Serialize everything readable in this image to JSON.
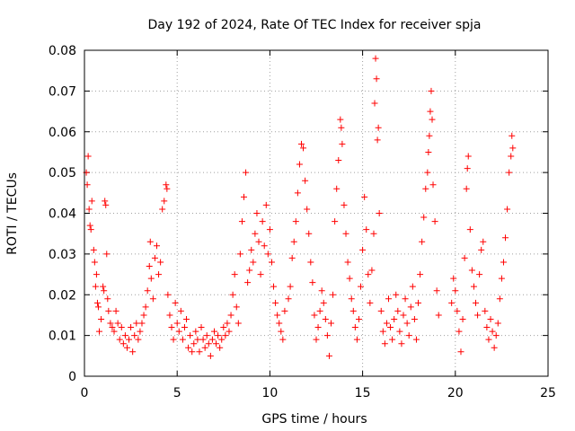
{
  "chart_data": {
    "type": "scatter",
    "title": "Day 192 of 2024, Rate Of TEC Index for receiver spja",
    "xlabel": "GPS time / hours",
    "ylabel": "ROTI / TECUs",
    "xlim": [
      0,
      25
    ],
    "ylim": [
      0,
      0.08
    ],
    "xticks": [
      0,
      5,
      10,
      15,
      20,
      25
    ],
    "yticks": [
      0,
      0.01,
      0.02,
      0.03,
      0.04,
      0.05,
      0.06,
      0.07,
      0.08
    ],
    "xtick_labels": [
      "0",
      "5",
      "10",
      "15",
      "20",
      "25"
    ],
    "ytick_labels": [
      "0",
      "0.01",
      "0.02",
      "0.03",
      "0.04",
      "0.05",
      "0.06",
      "0.07",
      "0.08"
    ],
    "grid": true,
    "marker": "+",
    "color": "#ff0000",
    "series": [
      {
        "name": "ROTI",
        "points": [
          [
            0.1,
            0.05
          ],
          [
            0.15,
            0.047
          ],
          [
            0.2,
            0.054
          ],
          [
            0.25,
            0.041
          ],
          [
            0.3,
            0.037
          ],
          [
            0.35,
            0.036
          ],
          [
            0.4,
            0.043
          ],
          [
            0.5,
            0.031
          ],
          [
            0.55,
            0.028
          ],
          [
            0.6,
            0.022
          ],
          [
            0.65,
            0.025
          ],
          [
            0.7,
            0.018
          ],
          [
            0.75,
            0.017
          ],
          [
            0.8,
            0.011
          ],
          [
            0.9,
            0.014
          ],
          [
            1.0,
            0.022
          ],
          [
            1.05,
            0.021
          ],
          [
            1.1,
            0.043
          ],
          [
            1.15,
            0.042
          ],
          [
            1.2,
            0.03
          ],
          [
            1.25,
            0.019
          ],
          [
            1.3,
            0.016
          ],
          [
            1.4,
            0.013
          ],
          [
            1.5,
            0.012
          ],
          [
            1.6,
            0.011
          ],
          [
            1.7,
            0.016
          ],
          [
            1.8,
            0.013
          ],
          [
            1.9,
            0.009
          ],
          [
            2.0,
            0.012
          ],
          [
            2.1,
            0.008
          ],
          [
            2.2,
            0.01
          ],
          [
            2.3,
            0.007
          ],
          [
            2.4,
            0.009
          ],
          [
            2.5,
            0.012
          ],
          [
            2.6,
            0.006
          ],
          [
            2.7,
            0.01
          ],
          [
            2.8,
            0.013
          ],
          [
            2.9,
            0.009
          ],
          [
            3.0,
            0.011
          ],
          [
            3.1,
            0.013
          ],
          [
            3.2,
            0.015
          ],
          [
            3.3,
            0.017
          ],
          [
            3.4,
            0.021
          ],
          [
            3.5,
            0.027
          ],
          [
            3.55,
            0.033
          ],
          [
            3.6,
            0.024
          ],
          [
            3.7,
            0.019
          ],
          [
            3.8,
            0.029
          ],
          [
            3.9,
            0.032
          ],
          [
            4.0,
            0.025
          ],
          [
            4.1,
            0.028
          ],
          [
            4.2,
            0.041
          ],
          [
            4.3,
            0.043
          ],
          [
            4.4,
            0.047
          ],
          [
            4.45,
            0.046
          ],
          [
            4.5,
            0.02
          ],
          [
            4.6,
            0.015
          ],
          [
            4.7,
            0.012
          ],
          [
            4.8,
            0.009
          ],
          [
            4.9,
            0.018
          ],
          [
            5.0,
            0.013
          ],
          [
            5.1,
            0.011
          ],
          [
            5.2,
            0.016
          ],
          [
            5.3,
            0.009
          ],
          [
            5.4,
            0.012
          ],
          [
            5.5,
            0.014
          ],
          [
            5.6,
            0.007
          ],
          [
            5.7,
            0.01
          ],
          [
            5.8,
            0.006
          ],
          [
            5.9,
            0.008
          ],
          [
            6.0,
            0.011
          ],
          [
            6.1,
            0.009
          ],
          [
            6.2,
            0.006
          ],
          [
            6.3,
            0.012
          ],
          [
            6.4,
            0.009
          ],
          [
            6.5,
            0.007
          ],
          [
            6.6,
            0.01
          ],
          [
            6.7,
            0.008
          ],
          [
            6.8,
            0.005
          ],
          [
            6.9,
            0.009
          ],
          [
            7.0,
            0.011
          ],
          [
            7.1,
            0.008
          ],
          [
            7.2,
            0.01
          ],
          [
            7.3,
            0.007
          ],
          [
            7.4,
            0.009
          ],
          [
            7.5,
            0.012
          ],
          [
            7.6,
            0.01
          ],
          [
            7.7,
            0.013
          ],
          [
            7.8,
            0.011
          ],
          [
            7.9,
            0.015
          ],
          [
            8.0,
            0.02
          ],
          [
            8.1,
            0.025
          ],
          [
            8.2,
            0.017
          ],
          [
            8.3,
            0.013
          ],
          [
            8.4,
            0.03
          ],
          [
            8.5,
            0.038
          ],
          [
            8.6,
            0.044
          ],
          [
            8.7,
            0.05
          ],
          [
            8.8,
            0.023
          ],
          [
            8.9,
            0.026
          ],
          [
            9.0,
            0.031
          ],
          [
            9.1,
            0.028
          ],
          [
            9.2,
            0.035
          ],
          [
            9.3,
            0.04
          ],
          [
            9.4,
            0.033
          ],
          [
            9.5,
            0.025
          ],
          [
            9.6,
            0.038
          ],
          [
            9.7,
            0.032
          ],
          [
            9.8,
            0.042
          ],
          [
            9.9,
            0.03
          ],
          [
            10.0,
            0.036
          ],
          [
            10.1,
            0.028
          ],
          [
            10.2,
            0.022
          ],
          [
            10.3,
            0.018
          ],
          [
            10.4,
            0.015
          ],
          [
            10.5,
            0.013
          ],
          [
            10.6,
            0.011
          ],
          [
            10.7,
            0.009
          ],
          [
            10.8,
            0.016
          ],
          [
            11.0,
            0.019
          ],
          [
            11.1,
            0.022
          ],
          [
            11.2,
            0.029
          ],
          [
            11.3,
            0.033
          ],
          [
            11.4,
            0.038
          ],
          [
            11.5,
            0.045
          ],
          [
            11.6,
            0.052
          ],
          [
            11.7,
            0.057
          ],
          [
            11.8,
            0.056
          ],
          [
            11.9,
            0.048
          ],
          [
            12.0,
            0.041
          ],
          [
            12.1,
            0.035
          ],
          [
            12.2,
            0.028
          ],
          [
            12.3,
            0.023
          ],
          [
            12.4,
            0.015
          ],
          [
            12.5,
            0.009
          ],
          [
            12.6,
            0.012
          ],
          [
            12.7,
            0.016
          ],
          [
            12.8,
            0.021
          ],
          [
            12.9,
            0.018
          ],
          [
            13.0,
            0.014
          ],
          [
            13.1,
            0.01
          ],
          [
            13.2,
            0.005
          ],
          [
            13.3,
            0.013
          ],
          [
            13.4,
            0.02
          ],
          [
            13.5,
            0.038
          ],
          [
            13.6,
            0.046
          ],
          [
            13.7,
            0.053
          ],
          [
            13.8,
            0.063
          ],
          [
            13.85,
            0.061
          ],
          [
            13.9,
            0.057
          ],
          [
            14.0,
            0.042
          ],
          [
            14.1,
            0.035
          ],
          [
            14.2,
            0.028
          ],
          [
            14.3,
            0.024
          ],
          [
            14.4,
            0.019
          ],
          [
            14.5,
            0.016
          ],
          [
            14.6,
            0.012
          ],
          [
            14.7,
            0.009
          ],
          [
            14.8,
            0.014
          ],
          [
            14.9,
            0.022
          ],
          [
            15.0,
            0.031
          ],
          [
            15.1,
            0.044
          ],
          [
            15.2,
            0.036
          ],
          [
            15.3,
            0.025
          ],
          [
            15.4,
            0.018
          ],
          [
            15.5,
            0.026
          ],
          [
            15.6,
            0.035
          ],
          [
            15.65,
            0.067
          ],
          [
            15.7,
            0.078
          ],
          [
            15.75,
            0.073
          ],
          [
            15.8,
            0.058
          ],
          [
            15.85,
            0.061
          ],
          [
            15.9,
            0.04
          ],
          [
            16.0,
            0.016
          ],
          [
            16.1,
            0.011
          ],
          [
            16.2,
            0.008
          ],
          [
            16.3,
            0.013
          ],
          [
            16.4,
            0.019
          ],
          [
            16.5,
            0.012
          ],
          [
            16.6,
            0.009
          ],
          [
            16.7,
            0.014
          ],
          [
            16.8,
            0.02
          ],
          [
            16.9,
            0.016
          ],
          [
            17.0,
            0.011
          ],
          [
            17.1,
            0.008
          ],
          [
            17.2,
            0.015
          ],
          [
            17.3,
            0.019
          ],
          [
            17.4,
            0.013
          ],
          [
            17.5,
            0.01
          ],
          [
            17.6,
            0.017
          ],
          [
            17.7,
            0.022
          ],
          [
            17.8,
            0.014
          ],
          [
            17.9,
            0.009
          ],
          [
            18.0,
            0.018
          ],
          [
            18.1,
            0.025
          ],
          [
            18.2,
            0.033
          ],
          [
            18.3,
            0.039
          ],
          [
            18.4,
            0.046
          ],
          [
            18.5,
            0.05
          ],
          [
            18.55,
            0.055
          ],
          [
            18.6,
            0.059
          ],
          [
            18.65,
            0.065
          ],
          [
            18.7,
            0.07
          ],
          [
            18.75,
            0.063
          ],
          [
            18.8,
            0.047
          ],
          [
            18.9,
            0.038
          ],
          [
            19.0,
            0.021
          ],
          [
            19.1,
            0.015
          ],
          [
            19.8,
            0.018
          ],
          [
            19.9,
            0.024
          ],
          [
            20.0,
            0.021
          ],
          [
            20.1,
            0.016
          ],
          [
            20.2,
            0.011
          ],
          [
            20.3,
            0.006
          ],
          [
            20.4,
            0.014
          ],
          [
            20.5,
            0.029
          ],
          [
            20.6,
            0.046
          ],
          [
            20.65,
            0.051
          ],
          [
            20.7,
            0.054
          ],
          [
            20.8,
            0.036
          ],
          [
            20.9,
            0.026
          ],
          [
            21.0,
            0.022
          ],
          [
            21.1,
            0.018
          ],
          [
            21.2,
            0.015
          ],
          [
            21.3,
            0.025
          ],
          [
            21.4,
            0.031
          ],
          [
            21.5,
            0.033
          ],
          [
            21.6,
            0.016
          ],
          [
            21.7,
            0.012
          ],
          [
            21.8,
            0.009
          ],
          [
            21.9,
            0.014
          ],
          [
            22.0,
            0.011
          ],
          [
            22.1,
            0.007
          ],
          [
            22.2,
            0.01
          ],
          [
            22.3,
            0.013
          ],
          [
            22.4,
            0.019
          ],
          [
            22.5,
            0.024
          ],
          [
            22.6,
            0.028
          ],
          [
            22.7,
            0.034
          ],
          [
            22.8,
            0.041
          ],
          [
            22.9,
            0.05
          ],
          [
            23.0,
            0.054
          ],
          [
            23.05,
            0.059
          ],
          [
            23.1,
            0.056
          ]
        ]
      }
    ]
  }
}
